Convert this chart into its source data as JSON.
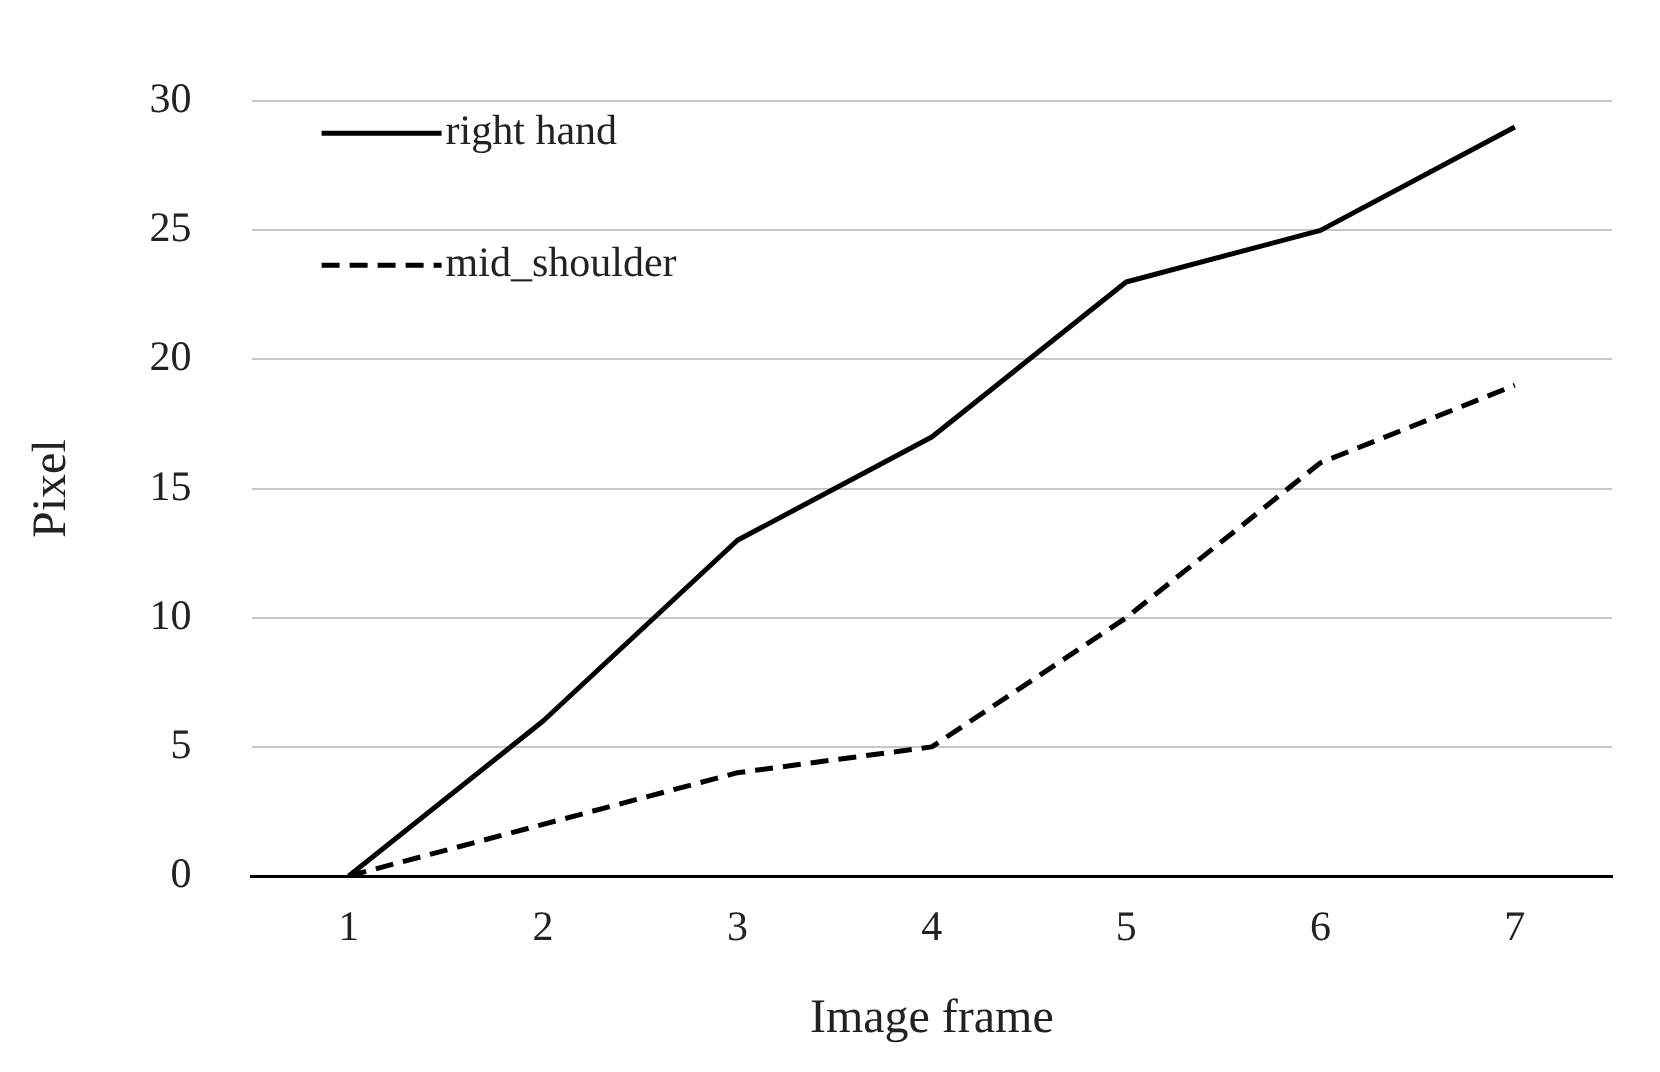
{
  "chart_data": {
    "type": "line",
    "xlabel": "Image frame",
    "ylabel": "Pixel",
    "categories": [
      "1",
      "2",
      "3",
      "4",
      "5",
      "6",
      "7"
    ],
    "series": [
      {
        "name": "right hand",
        "color": "#000000",
        "line_style": "solid",
        "values": [
          0,
          6,
          13,
          17,
          23,
          25,
          29
        ]
      },
      {
        "name": "mid_shoulder",
        "color": "#000000",
        "line_style": "dashed",
        "values": [
          0,
          2,
          4,
          5,
          10,
          16,
          19
        ]
      }
    ],
    "ylim": [
      0,
      30
    ],
    "yticks": [
      0,
      5,
      10,
      15,
      20,
      25,
      30
    ],
    "grid": "y",
    "legend": "top left",
    "marker": "none"
  }
}
